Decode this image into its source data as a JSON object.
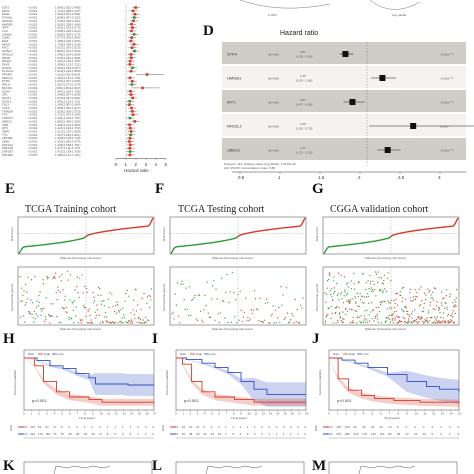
{
  "panels": {
    "D": "D",
    "E": "E",
    "F": "F",
    "G": "G",
    "H": "H",
    "I": "I",
    "J": "J",
    "K": "K",
    "L": "L",
    "M": "M"
  },
  "forest_c": {
    "genes": [
      "E2F2",
      "E2F5",
      "EZH2",
      "FOXM1",
      "HMGA1",
      "HMGB3",
      "IRF5",
      "LCK",
      "LMNB1",
      "LSM2",
      "MAZ",
      "MKI67",
      "MYC",
      "MYBL2",
      "NFE2L2",
      "NPM1",
      "NR2F1",
      "PAX5",
      "PA2G4",
      "PLAGL2",
      "PPARG",
      "PRKCQ",
      "PTRF",
      "RELA",
      "RUNX1",
      "SOX9",
      "SP1",
      "STAT1",
      "SUZ12",
      "TAL1",
      "TCF3",
      "TRIM28",
      "TTK",
      "TWIST1",
      "UBE2C",
      "VDR",
      "WT1",
      "XBP1",
      "YY1",
      "ZNF281",
      "ZEB1",
      "ZNF143",
      "ZNF148",
      "ZNF263",
      "ZNF384"
    ],
    "pvals": [
      "<0.001",
      "<0.001",
      "<0.001",
      "<0.001",
      "<0.001",
      "<0.001",
      "<0.001",
      "<0.001",
      "<0.001",
      "<0.001",
      "<0.001",
      "<0.001",
      "<0.001",
      "<0.001",
      "<0.001",
      "<0.001",
      "<0.001",
      "<0.001",
      "<0.001",
      "<0.001",
      "<0.001",
      "<0.001",
      "<0.001",
      "<0.001",
      "<0.001",
      "<0.001",
      "<0.001",
      "<0.001",
      "<0.001",
      "<0.001",
      "<0.001",
      "<0.001",
      "<0.001",
      "<0.001",
      "<0.001",
      "<0.001",
      "<0.001",
      "<0.001",
      "<0.001",
      "<0.001",
      "<0.001",
      "<0.001",
      "<0.001",
      "<0.001",
      "<0.001"
    ],
    "hr_text": [
      "1.965(1.552-2.488)",
      "1.714(1.368-2.147)",
      "1.902(1.511-2.394)",
      "1.828(1.457-2.293)",
      "1.748(1.393-2.194)",
      "1.563(1.255-1.946)",
      "1.651(1.315-2.073)",
      "1.538(1.236-1.914)",
      "1.806(1.435-2.273)",
      "1.577(1.266-1.964)",
      "1.485(1.195-1.846)",
      "1.795(1.428-2.256)",
      "1.612(1.291-2.013)",
      "1.853(1.474-2.329)",
      "1.496(1.204-1.859)",
      "1.533(1.232-1.908)",
      "1.421(1.145-1.764)",
      "1.389(1.121-1.721)",
      "1.652(1.320-2.067)",
      "1.512(1.216-1.880)",
      "3.112(2.012-4.814)",
      "1.402(1.131-1.738)",
      "1.631(1.307-2.035)",
      "1.587(1.273-1.979)",
      "2.651(1.801-3.903)",
      "1.447(1.166-1.796)",
      "1.498(1.207-1.859)",
      "1.673(1.337-2.094)",
      "1.381(1.114-1.712)",
      "1.345(1.087-1.664)",
      "1.556(1.250-1.937)",
      "1.629(1.305-2.033)",
      "1.712(1.367-2.144)",
      "1.401(1.130-1.737)",
      "1.882(1.495-2.369)",
      "1.362(1.101-1.685)",
      "1.421(1.146-1.762)",
      "1.512(1.216-1.880)",
      "1.467(1.182-1.821)",
      "1.398(1.128-1.733)",
      "1.352(1.092-1.674)",
      "1.436(1.158-1.781)",
      "1.377(1.111-1.707)",
      "1.412(1.139-1.750)",
      "1.389(1.121-1.721)"
    ],
    "hr": [
      1.97,
      1.71,
      1.9,
      1.83,
      1.75,
      1.56,
      1.65,
      1.54,
      1.81,
      1.58,
      1.49,
      1.8,
      1.61,
      1.85,
      1.5,
      1.53,
      1.42,
      1.39,
      1.65,
      1.51,
      3.11,
      1.4,
      1.63,
      1.59,
      2.65,
      1.45,
      1.5,
      1.67,
      1.38,
      1.35,
      1.56,
      1.63,
      1.71,
      1.4,
      1.88,
      1.36,
      1.42,
      1.51,
      1.47,
      1.4,
      1.35,
      1.44,
      1.38,
      1.41,
      1.39
    ],
    "ticks": [
      "0",
      "1",
      "2",
      "3",
      "4",
      "5"
    ],
    "xlabel": "Hazard ratio"
  },
  "forest_d": {
    "title": "Hazard ratio",
    "rows": [
      {
        "gene": "STK4",
        "n": "(N=416)",
        "hr": 0.51,
        "lo": 0.38,
        "hi": 0.69,
        "hr_txt": "0.51",
        "ci_txt": "(0.38 - 0.69)",
        "p": "<0.001 ***"
      },
      {
        "gene": "HMGB1",
        "n": "(N=416)",
        "hr": 1.35,
        "lo": 1.09,
        "hi": 1.66,
        "hr_txt": "1.35",
        "ci_txt": "(1.09 - 1.66)",
        "p": "<0.001 ***"
      },
      {
        "gene": "MYC",
        "n": "(N=416)",
        "hr": 0.67,
        "lo": 0.47,
        "hi": 0.95,
        "hr_txt": "0.67",
        "ci_txt": "(0.47 - 0.95)",
        "p": "<0.001 ***"
      },
      {
        "gene": "NFE2L2",
        "n": "(N=416)",
        "hr": 2.05,
        "lo": 1.05,
        "hi": 3.78,
        "hr_txt": "2.05",
        "ci_txt": "(1.05 - 3.78)",
        "p": "0.008 **"
      },
      {
        "gene": "UBE2C",
        "n": "(N=416)",
        "hr": 1.47,
        "lo": 1.23,
        "hi": 1.76,
        "hr_txt": "1.47",
        "ci_txt": "(1.23 - 1.76)",
        "p": "<0.001 ***"
      }
    ],
    "footer1": "# Events: 114; Global p-value (Log-Rank): 7.9279e-39",
    "footer2": "AIC: 953.52; Concordance Index: 0.86",
    "ticks": [
      "0.5",
      "1",
      "1.5",
      "2",
      "2.5",
      "3"
    ],
    "ref": 1
  },
  "cohorts": [
    {
      "title": "TCGA Training cohort",
      "xl": "Patients (increasing risk score)",
      "yl": "Risk score"
    },
    {
      "title": "TCGA Testing cohort",
      "xl": "Patients (increasing risk score)",
      "yl": "Risk score"
    },
    {
      "title": "CGGA validation cohort",
      "xl": "Patients (increasing risk score)",
      "yl": "Risk score"
    }
  ],
  "scatter_labels": {
    "xl": "Patients (increasing risk score)",
    "yl": "Survival time (years)"
  },
  "km": [
    {
      "p": "p<0.001",
      "legend": [
        "Risk",
        "High",
        "Low"
      ],
      "ylab": "Survival probability",
      "xlab": "Time(years)",
      "ticks": [
        "0",
        "1",
        "2",
        "3",
        "4",
        "5",
        "6",
        "7",
        "8",
        "9",
        "10",
        "11",
        "12",
        "13",
        "14",
        "15",
        "16",
        "17"
      ],
      "table": [
        [
          "237",
          "197",
          "93",
          "37",
          "17",
          "9",
          "6",
          "4",
          "3",
          "2",
          "2",
          "1",
          "1",
          "1",
          "1",
          "0",
          "0",
          "0"
        ],
        [
          "237",
          "222",
          "173",
          "118",
          "76",
          "57",
          "39",
          "25",
          "18",
          "15",
          "11",
          "8",
          "6",
          "3",
          "2",
          "1",
          "1",
          "0"
        ]
      ]
    },
    {
      "p": "p<0.001",
      "legend": [
        "Risk",
        "High",
        "Low"
      ],
      "ylab": "Survival probability",
      "xlab": "Time(years)",
      "ticks": [
        "0",
        "1",
        "2",
        "3",
        "4",
        "5",
        "6",
        "7",
        "8",
        "9",
        "10",
        "11",
        "12",
        "13",
        "14",
        "15",
        "16",
        "17",
        "18"
      ],
      "table": [
        [
          "69",
          "44",
          "19",
          "11",
          "6",
          "4",
          "3",
          "1",
          "1",
          "1",
          "1",
          "1",
          "0",
          "0",
          "0",
          "0",
          "0",
          "0",
          "0"
        ],
        [
          "69",
          "63",
          "48",
          "32",
          "20",
          "15",
          "10",
          "7",
          "5",
          "4",
          "3",
          "2",
          "2",
          "1",
          "1",
          "1",
          "1",
          "1",
          "0"
        ]
      ]
    },
    {
      "p": "p<0.001",
      "legend": [
        "Risk",
        "High",
        "Low"
      ],
      "ylab": "Survival probability",
      "xlab": "Time(years)",
      "ticks": [
        "0",
        "1",
        "2",
        "3",
        "4",
        "5",
        "6",
        "7",
        "8",
        "9",
        "10",
        "11",
        "12",
        "13",
        "14",
        "15"
      ],
      "table": [
        [
          "343",
          "187",
          "100",
          "62",
          "44",
          "31",
          "20",
          "13",
          "8",
          "5",
          "4",
          "3",
          "2",
          "1",
          "0",
          "0"
        ],
        [
          "342",
          "307",
          "265",
          "219",
          "176",
          "140",
          "114",
          "84",
          "55",
          "37",
          "23",
          "12",
          "6",
          "3",
          "1",
          "0"
        ]
      ]
    }
  ],
  "colors": {
    "high": "#d93a2b",
    "low": "#2f4ec8",
    "green": "#2e9a3a",
    "shade": "#e0ded8",
    "zebra": "#cfcdc6"
  }
}
